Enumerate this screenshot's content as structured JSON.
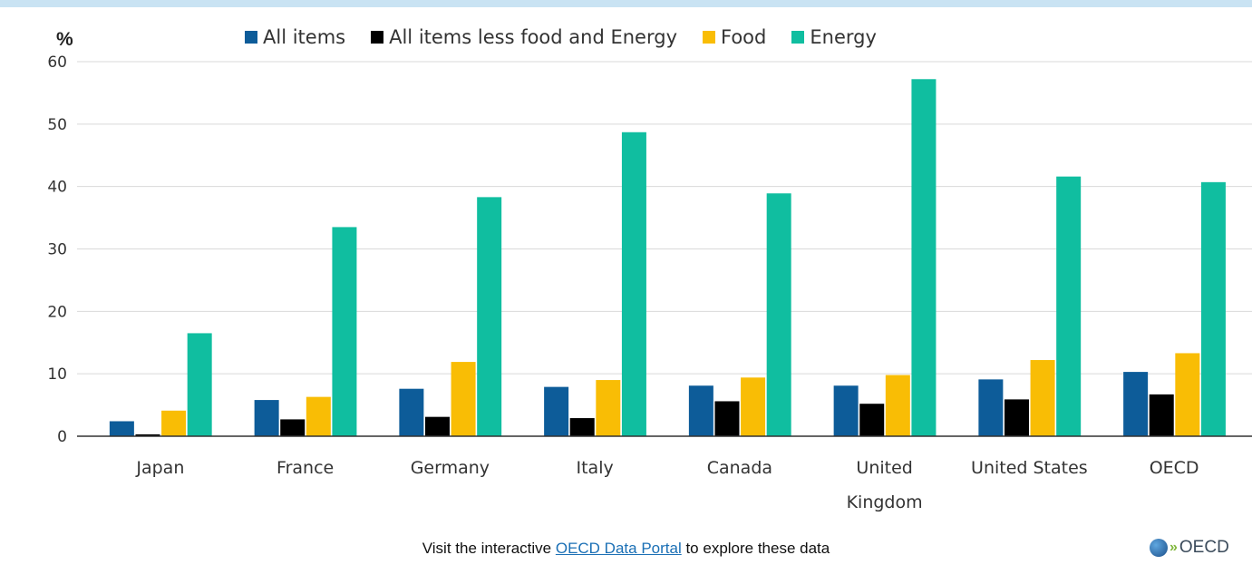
{
  "colors": {
    "all_items": "#0d5c99",
    "core": "#000000",
    "food": "#f9bd05",
    "energy": "#10bea0",
    "grid": "#d9d9d9",
    "axis": "#333333"
  },
  "chart_data": {
    "type": "bar",
    "title": "",
    "ylabel": "%",
    "xlabel": "",
    "ylim": [
      0,
      60
    ],
    "yticks": [
      0,
      10,
      20,
      30,
      40,
      50,
      60
    ],
    "grid": true,
    "legend_position": "top",
    "categories": [
      "Japan",
      "France",
      "Germany",
      "Italy",
      "Canada",
      "United Kingdom",
      "United States",
      "OECD"
    ],
    "category_lines": [
      [
        "Japan"
      ],
      [
        "France"
      ],
      [
        "Germany"
      ],
      [
        "Italy"
      ],
      [
        "Canada"
      ],
      [
        "United",
        "Kingdom"
      ],
      [
        "United States"
      ],
      [
        "OECD"
      ]
    ],
    "series": [
      {
        "name": "All items",
        "color": "#0d5c99",
        "values": [
          2.4,
          5.8,
          7.6,
          7.9,
          8.1,
          8.1,
          9.1,
          10.3
        ]
      },
      {
        "name": "All items less food and Energy",
        "color": "#000000",
        "values": [
          0.3,
          2.7,
          3.1,
          2.9,
          5.6,
          5.2,
          5.9,
          6.7
        ]
      },
      {
        "name": "Food",
        "color": "#f9bd05",
        "values": [
          4.1,
          6.3,
          11.9,
          9.0,
          9.4,
          9.8,
          12.2,
          13.3
        ]
      },
      {
        "name": "Energy",
        "color": "#10bea0",
        "values": [
          16.5,
          33.5,
          38.3,
          48.7,
          38.9,
          57.2,
          41.6,
          40.7
        ]
      }
    ]
  },
  "footer": {
    "prefix": "Visit the interactive ",
    "link": "OECD Data Portal",
    "suffix": " to explore these data"
  },
  "logo": {
    "text": "OECD"
  }
}
